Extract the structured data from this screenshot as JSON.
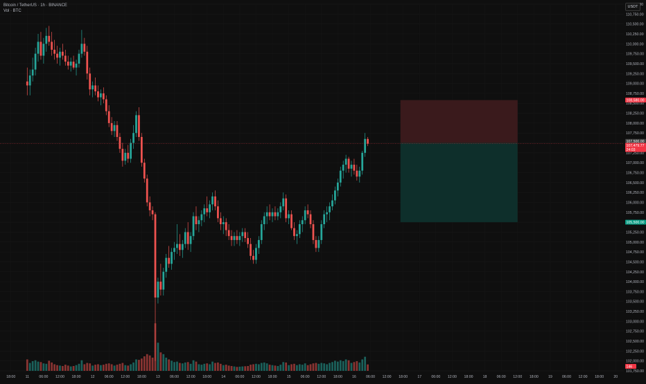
{
  "legend": {
    "symbol_line": "Bitcoin / TetherUS · 1h · BINANCE",
    "volume_line": "Vol · BTC"
  },
  "currency_badge": "USDT",
  "colors": {
    "background": "#0f0f0f",
    "up": "#26a69a",
    "down": "#ef5350",
    "stop_zone": "#3a1a1c",
    "target_zone": "#0e2f2b",
    "stop_tag": "#f23645",
    "target_tag": "#089981",
    "price_tag": "#f23645"
  },
  "chart_data": {
    "type": "candlestick",
    "title": "Bitcoin / TetherUS · 1h · BINANCE",
    "ylim": [
      101750,
      111000
    ],
    "y_ticks": [
      "111,000.00",
      "110,750.00",
      "110,500.00",
      "110,250.00",
      "110,000.00",
      "109,750.00",
      "109,500.00",
      "109,250.00",
      "109,000.00",
      "108,750.00",
      "108,500.00",
      "108,250.00",
      "108,000.00",
      "107,750.00",
      "107,500.00",
      "107,250.00",
      "107,000.00",
      "106,750.00",
      "106,500.00",
      "106,250.00",
      "106,000.00",
      "105,750.00",
      "105,500.00",
      "105,250.00",
      "105,000.00",
      "104,750.00",
      "104,500.00",
      "104,250.00",
      "104,000.00",
      "103,750.00",
      "103,500.00",
      "103,250.00",
      "103,000.00",
      "102,750.00",
      "102,500.00",
      "102,250.00",
      "102,000.00",
      "101,750.00"
    ],
    "x_ticks": [
      {
        "label": "18:00",
        "hour": -6
      },
      {
        "label": "11",
        "hour": 0
      },
      {
        "label": "06:00",
        "hour": 6
      },
      {
        "label": "12:00",
        "hour": 12
      },
      {
        "label": "18:00",
        "hour": 18
      },
      {
        "label": "12",
        "hour": 24
      },
      {
        "label": "06:00",
        "hour": 30
      },
      {
        "label": "12:00",
        "hour": 36
      },
      {
        "label": "18:00",
        "hour": 42
      },
      {
        "label": "13",
        "hour": 48
      },
      {
        "label": "06:00",
        "hour": 54
      },
      {
        "label": "12:00",
        "hour": 60
      },
      {
        "label": "18:00",
        "hour": 66
      },
      {
        "label": "14",
        "hour": 72
      },
      {
        "label": "06:00",
        "hour": 78
      },
      {
        "label": "12:00",
        "hour": 84
      },
      {
        "label": "18:00",
        "hour": 90
      },
      {
        "label": "15",
        "hour": 96
      },
      {
        "label": "06:00",
        "hour": 102
      },
      {
        "label": "12:00",
        "hour": 108
      },
      {
        "label": "18:00",
        "hour": 114
      },
      {
        "label": "16",
        "hour": 120
      },
      {
        "label": "06:00",
        "hour": 126
      },
      {
        "label": "12:00",
        "hour": 132
      },
      {
        "label": "18:00",
        "hour": 138
      },
      {
        "label": "17",
        "hour": 144
      },
      {
        "label": "06:00",
        "hour": 150
      },
      {
        "label": "12:00",
        "hour": 156
      },
      {
        "label": "18:00",
        "hour": 162
      },
      {
        "label": "18",
        "hour": 168
      },
      {
        "label": "06:00",
        "hour": 174
      },
      {
        "label": "12:00",
        "hour": 180
      },
      {
        "label": "18:00",
        "hour": 186
      },
      {
        "label": "19",
        "hour": 192
      },
      {
        "label": "06:00",
        "hour": 198
      },
      {
        "label": "12:00",
        "hour": 204
      },
      {
        "label": "18:00",
        "hour": 210
      },
      {
        "label": "20",
        "hour": 216
      }
    ],
    "x_range_hours": [
      -10,
      219
    ],
    "position": {
      "stop_price": 108580,
      "entry_price": 107500,
      "target_price": 105500,
      "start_hour": 137,
      "end_hour": 180
    },
    "tags": {
      "stop_label": "108,580.00",
      "entry_label": "107,500.00",
      "current_label": "107,479.77",
      "countdown_label": "24:03",
      "target_label": "105,500.00",
      "volume_label": "146"
    },
    "volume_max": 1100,
    "candles": [
      {
        "o": 109050,
        "h": 109400,
        "l": 108700,
        "c": 108950,
        "v": 260
      },
      {
        "o": 108950,
        "h": 109350,
        "l": 108700,
        "c": 109200,
        "v": 180
      },
      {
        "o": 109200,
        "h": 109650,
        "l": 109050,
        "c": 109350,
        "v": 220
      },
      {
        "o": 109350,
        "h": 109900,
        "l": 109200,
        "c": 109750,
        "v": 240
      },
      {
        "o": 109750,
        "h": 110250,
        "l": 109550,
        "c": 110050,
        "v": 210
      },
      {
        "o": 110050,
        "h": 110300,
        "l": 109600,
        "c": 109700,
        "v": 200
      },
      {
        "o": 109700,
        "h": 110150,
        "l": 109500,
        "c": 110000,
        "v": 170
      },
      {
        "o": 110000,
        "h": 110400,
        "l": 109800,
        "c": 110200,
        "v": 160
      },
      {
        "o": 110200,
        "h": 110450,
        "l": 109950,
        "c": 110050,
        "v": 230
      },
      {
        "o": 110050,
        "h": 110300,
        "l": 109700,
        "c": 109850,
        "v": 190
      },
      {
        "o": 109850,
        "h": 110100,
        "l": 109600,
        "c": 109750,
        "v": 150
      },
      {
        "o": 109750,
        "h": 109950,
        "l": 109500,
        "c": 109650,
        "v": 130
      },
      {
        "o": 109650,
        "h": 109900,
        "l": 109450,
        "c": 109800,
        "v": 120
      },
      {
        "o": 109800,
        "h": 110000,
        "l": 109600,
        "c": 109700,
        "v": 110
      },
      {
        "o": 109700,
        "h": 109850,
        "l": 109450,
        "c": 109550,
        "v": 140
      },
      {
        "o": 109550,
        "h": 109700,
        "l": 109350,
        "c": 109450,
        "v": 120
      },
      {
        "o": 109450,
        "h": 109650,
        "l": 109300,
        "c": 109550,
        "v": 100
      },
      {
        "o": 109550,
        "h": 109700,
        "l": 109350,
        "c": 109400,
        "v": 110
      },
      {
        "o": 109400,
        "h": 109600,
        "l": 109200,
        "c": 109500,
        "v": 130
      },
      {
        "o": 109500,
        "h": 109850,
        "l": 109400,
        "c": 109750,
        "v": 160
      },
      {
        "o": 109750,
        "h": 110350,
        "l": 109650,
        "c": 110000,
        "v": 240
      },
      {
        "o": 110000,
        "h": 110150,
        "l": 109700,
        "c": 109800,
        "v": 150
      },
      {
        "o": 109800,
        "h": 109950,
        "l": 109100,
        "c": 109250,
        "v": 180
      },
      {
        "o": 109250,
        "h": 109400,
        "l": 108700,
        "c": 108850,
        "v": 170
      },
      {
        "o": 108850,
        "h": 109050,
        "l": 108650,
        "c": 108950,
        "v": 120
      },
      {
        "o": 108950,
        "h": 109150,
        "l": 108700,
        "c": 108800,
        "v": 140
      },
      {
        "o": 108800,
        "h": 108950,
        "l": 108550,
        "c": 108650,
        "v": 150
      },
      {
        "o": 108650,
        "h": 108850,
        "l": 108450,
        "c": 108750,
        "v": 130
      },
      {
        "o": 108750,
        "h": 108900,
        "l": 108500,
        "c": 108600,
        "v": 140
      },
      {
        "o": 108600,
        "h": 108700,
        "l": 108200,
        "c": 108300,
        "v": 160
      },
      {
        "o": 108300,
        "h": 108450,
        "l": 107900,
        "c": 108000,
        "v": 170
      },
      {
        "o": 108000,
        "h": 108150,
        "l": 107700,
        "c": 107800,
        "v": 150
      },
      {
        "o": 107800,
        "h": 108050,
        "l": 107650,
        "c": 107950,
        "v": 120
      },
      {
        "o": 107950,
        "h": 108050,
        "l": 107550,
        "c": 107650,
        "v": 140
      },
      {
        "o": 107650,
        "h": 107750,
        "l": 107250,
        "c": 107350,
        "v": 160
      },
      {
        "o": 107350,
        "h": 107500,
        "l": 106900,
        "c": 107050,
        "v": 180
      },
      {
        "o": 107050,
        "h": 107350,
        "l": 106950,
        "c": 107250,
        "v": 130
      },
      {
        "o": 107250,
        "h": 107450,
        "l": 107000,
        "c": 107100,
        "v": 120
      },
      {
        "o": 107100,
        "h": 107600,
        "l": 107000,
        "c": 107500,
        "v": 150
      },
      {
        "o": 107500,
        "h": 107950,
        "l": 107350,
        "c": 107750,
        "v": 190
      },
      {
        "o": 107750,
        "h": 108300,
        "l": 107650,
        "c": 108200,
        "v": 260
      },
      {
        "o": 108200,
        "h": 108400,
        "l": 107550,
        "c": 107650,
        "v": 250
      },
      {
        "o": 107650,
        "h": 107750,
        "l": 106900,
        "c": 107000,
        "v": 280
      },
      {
        "o": 107000,
        "h": 107100,
        "l": 106500,
        "c": 106600,
        "v": 330
      },
      {
        "o": 106600,
        "h": 106700,
        "l": 105900,
        "c": 106000,
        "v": 380
      },
      {
        "o": 106000,
        "h": 106150,
        "l": 105650,
        "c": 105800,
        "v": 350
      },
      {
        "o": 105800,
        "h": 105900,
        "l": 105550,
        "c": 105700,
        "v": 300
      },
      {
        "o": 105700,
        "h": 105750,
        "l": 102000,
        "c": 103600,
        "v": 1080
      },
      {
        "o": 103600,
        "h": 104100,
        "l": 103450,
        "c": 104000,
        "v": 640
      },
      {
        "o": 104000,
        "h": 104450,
        "l": 103650,
        "c": 103800,
        "v": 420
      },
      {
        "o": 103800,
        "h": 104350,
        "l": 103650,
        "c": 104250,
        "v": 380
      },
      {
        "o": 104250,
        "h": 104700,
        "l": 104100,
        "c": 104600,
        "v": 300
      },
      {
        "o": 104600,
        "h": 104900,
        "l": 104350,
        "c": 104450,
        "v": 260
      },
      {
        "o": 104450,
        "h": 104850,
        "l": 104300,
        "c": 104750,
        "v": 230
      },
      {
        "o": 104750,
        "h": 105000,
        "l": 104550,
        "c": 104850,
        "v": 200
      },
      {
        "o": 104850,
        "h": 105450,
        "l": 104700,
        "c": 104950,
        "v": 210
      },
      {
        "o": 104950,
        "h": 105200,
        "l": 104650,
        "c": 104800,
        "v": 180
      },
      {
        "o": 104800,
        "h": 105050,
        "l": 104600,
        "c": 104950,
        "v": 170
      },
      {
        "o": 104950,
        "h": 105350,
        "l": 104850,
        "c": 105250,
        "v": 190
      },
      {
        "o": 105250,
        "h": 105500,
        "l": 104800,
        "c": 104950,
        "v": 200
      },
      {
        "o": 104950,
        "h": 105250,
        "l": 104750,
        "c": 105150,
        "v": 160
      },
      {
        "o": 105150,
        "h": 105750,
        "l": 105050,
        "c": 105650,
        "v": 240
      },
      {
        "o": 105650,
        "h": 105900,
        "l": 105300,
        "c": 105450,
        "v": 210
      },
      {
        "o": 105450,
        "h": 105650,
        "l": 105250,
        "c": 105550,
        "v": 150
      },
      {
        "o": 105550,
        "h": 105800,
        "l": 105400,
        "c": 105700,
        "v": 140
      },
      {
        "o": 105700,
        "h": 105950,
        "l": 105500,
        "c": 105850,
        "v": 160
      },
      {
        "o": 105850,
        "h": 106150,
        "l": 105650,
        "c": 105750,
        "v": 170
      },
      {
        "o": 105750,
        "h": 106050,
        "l": 105600,
        "c": 105950,
        "v": 150
      },
      {
        "o": 105950,
        "h": 106250,
        "l": 105800,
        "c": 106150,
        "v": 210
      },
      {
        "o": 106150,
        "h": 106300,
        "l": 105800,
        "c": 105900,
        "v": 180
      },
      {
        "o": 105900,
        "h": 106050,
        "l": 105500,
        "c": 105600,
        "v": 190
      },
      {
        "o": 105600,
        "h": 105750,
        "l": 105300,
        "c": 105450,
        "v": 160
      },
      {
        "o": 105450,
        "h": 105650,
        "l": 105200,
        "c": 105500,
        "v": 130
      },
      {
        "o": 105500,
        "h": 105600,
        "l": 105150,
        "c": 105300,
        "v": 140
      },
      {
        "o": 105300,
        "h": 105450,
        "l": 105050,
        "c": 105150,
        "v": 120
      },
      {
        "o": 105150,
        "h": 105300,
        "l": 104900,
        "c": 105050,
        "v": 110
      },
      {
        "o": 105050,
        "h": 105250,
        "l": 104900,
        "c": 105150,
        "v": 100
      },
      {
        "o": 105150,
        "h": 105300,
        "l": 104950,
        "c": 105050,
        "v": 90
      },
      {
        "o": 105050,
        "h": 105250,
        "l": 104900,
        "c": 105150,
        "v": 95
      },
      {
        "o": 105150,
        "h": 105350,
        "l": 105000,
        "c": 105250,
        "v": 100
      },
      {
        "o": 105250,
        "h": 105350,
        "l": 105000,
        "c": 105100,
        "v": 105
      },
      {
        "o": 105100,
        "h": 105250,
        "l": 104850,
        "c": 104950,
        "v": 110
      },
      {
        "o": 104950,
        "h": 105100,
        "l": 104550,
        "c": 104650,
        "v": 140
      },
      {
        "o": 104650,
        "h": 104800,
        "l": 104450,
        "c": 104550,
        "v": 150
      },
      {
        "o": 104550,
        "h": 104950,
        "l": 104450,
        "c": 104850,
        "v": 160
      },
      {
        "o": 104850,
        "h": 105150,
        "l": 104700,
        "c": 105050,
        "v": 150
      },
      {
        "o": 105050,
        "h": 105550,
        "l": 104950,
        "c": 105450,
        "v": 180
      },
      {
        "o": 105450,
        "h": 105750,
        "l": 105300,
        "c": 105650,
        "v": 190
      },
      {
        "o": 105650,
        "h": 105900,
        "l": 105450,
        "c": 105750,
        "v": 170
      },
      {
        "o": 105750,
        "h": 105950,
        "l": 105550,
        "c": 105650,
        "v": 140
      },
      {
        "o": 105650,
        "h": 105850,
        "l": 105500,
        "c": 105750,
        "v": 130
      },
      {
        "o": 105750,
        "h": 105900,
        "l": 105550,
        "c": 105650,
        "v": 120
      },
      {
        "o": 105650,
        "h": 105850,
        "l": 105550,
        "c": 105750,
        "v": 110
      },
      {
        "o": 105750,
        "h": 106000,
        "l": 105600,
        "c": 105900,
        "v": 140
      },
      {
        "o": 105900,
        "h": 106250,
        "l": 105800,
        "c": 106100,
        "v": 200
      },
      {
        "o": 106100,
        "h": 106200,
        "l": 105500,
        "c": 105600,
        "v": 190
      },
      {
        "o": 105600,
        "h": 105800,
        "l": 105450,
        "c": 105700,
        "v": 130
      },
      {
        "o": 105700,
        "h": 105800,
        "l": 105300,
        "c": 105350,
        "v": 150
      },
      {
        "o": 105350,
        "h": 105500,
        "l": 105050,
        "c": 105150,
        "v": 160
      },
      {
        "o": 105150,
        "h": 105300,
        "l": 104950,
        "c": 105200,
        "v": 130
      },
      {
        "o": 105200,
        "h": 105550,
        "l": 105100,
        "c": 105450,
        "v": 150
      },
      {
        "o": 105450,
        "h": 105650,
        "l": 105250,
        "c": 105550,
        "v": 140
      },
      {
        "o": 105550,
        "h": 105900,
        "l": 105450,
        "c": 105800,
        "v": 170
      },
      {
        "o": 105800,
        "h": 105950,
        "l": 105600,
        "c": 105700,
        "v": 130
      },
      {
        "o": 105700,
        "h": 105800,
        "l": 105350,
        "c": 105450,
        "v": 150
      },
      {
        "o": 105450,
        "h": 105550,
        "l": 104950,
        "c": 105050,
        "v": 170
      },
      {
        "o": 105050,
        "h": 105150,
        "l": 104750,
        "c": 104850,
        "v": 180
      },
      {
        "o": 104850,
        "h": 105150,
        "l": 104750,
        "c": 105050,
        "v": 160
      },
      {
        "o": 105050,
        "h": 105550,
        "l": 104950,
        "c": 105450,
        "v": 180
      },
      {
        "o": 105450,
        "h": 105800,
        "l": 105350,
        "c": 105700,
        "v": 170
      },
      {
        "o": 105700,
        "h": 105900,
        "l": 105500,
        "c": 105750,
        "v": 150
      },
      {
        "o": 105750,
        "h": 106000,
        "l": 105550,
        "c": 105900,
        "v": 180
      },
      {
        "o": 105900,
        "h": 106200,
        "l": 105800,
        "c": 106050,
        "v": 200
      },
      {
        "o": 106050,
        "h": 106400,
        "l": 105950,
        "c": 106300,
        "v": 230
      },
      {
        "o": 106300,
        "h": 106600,
        "l": 106150,
        "c": 106500,
        "v": 210
      },
      {
        "o": 106500,
        "h": 106900,
        "l": 106400,
        "c": 106800,
        "v": 240
      },
      {
        "o": 106800,
        "h": 107050,
        "l": 106600,
        "c": 106950,
        "v": 220
      },
      {
        "o": 106950,
        "h": 107200,
        "l": 106750,
        "c": 107100,
        "v": 260
      },
      {
        "o": 107100,
        "h": 107150,
        "l": 106750,
        "c": 106850,
        "v": 240
      },
      {
        "o": 106850,
        "h": 107050,
        "l": 106650,
        "c": 106950,
        "v": 180
      },
      {
        "o": 106950,
        "h": 107100,
        "l": 106700,
        "c": 106800,
        "v": 200
      },
      {
        "o": 106800,
        "h": 106950,
        "l": 106550,
        "c": 106650,
        "v": 220
      },
      {
        "o": 106650,
        "h": 106900,
        "l": 106500,
        "c": 106800,
        "v": 190
      },
      {
        "o": 106800,
        "h": 107300,
        "l": 106700,
        "c": 107250,
        "v": 260
      },
      {
        "o": 107250,
        "h": 107750,
        "l": 107150,
        "c": 107600,
        "v": 320
      },
      {
        "o": 107600,
        "h": 107650,
        "l": 107420,
        "c": 107480,
        "v": 146
      }
    ]
  }
}
